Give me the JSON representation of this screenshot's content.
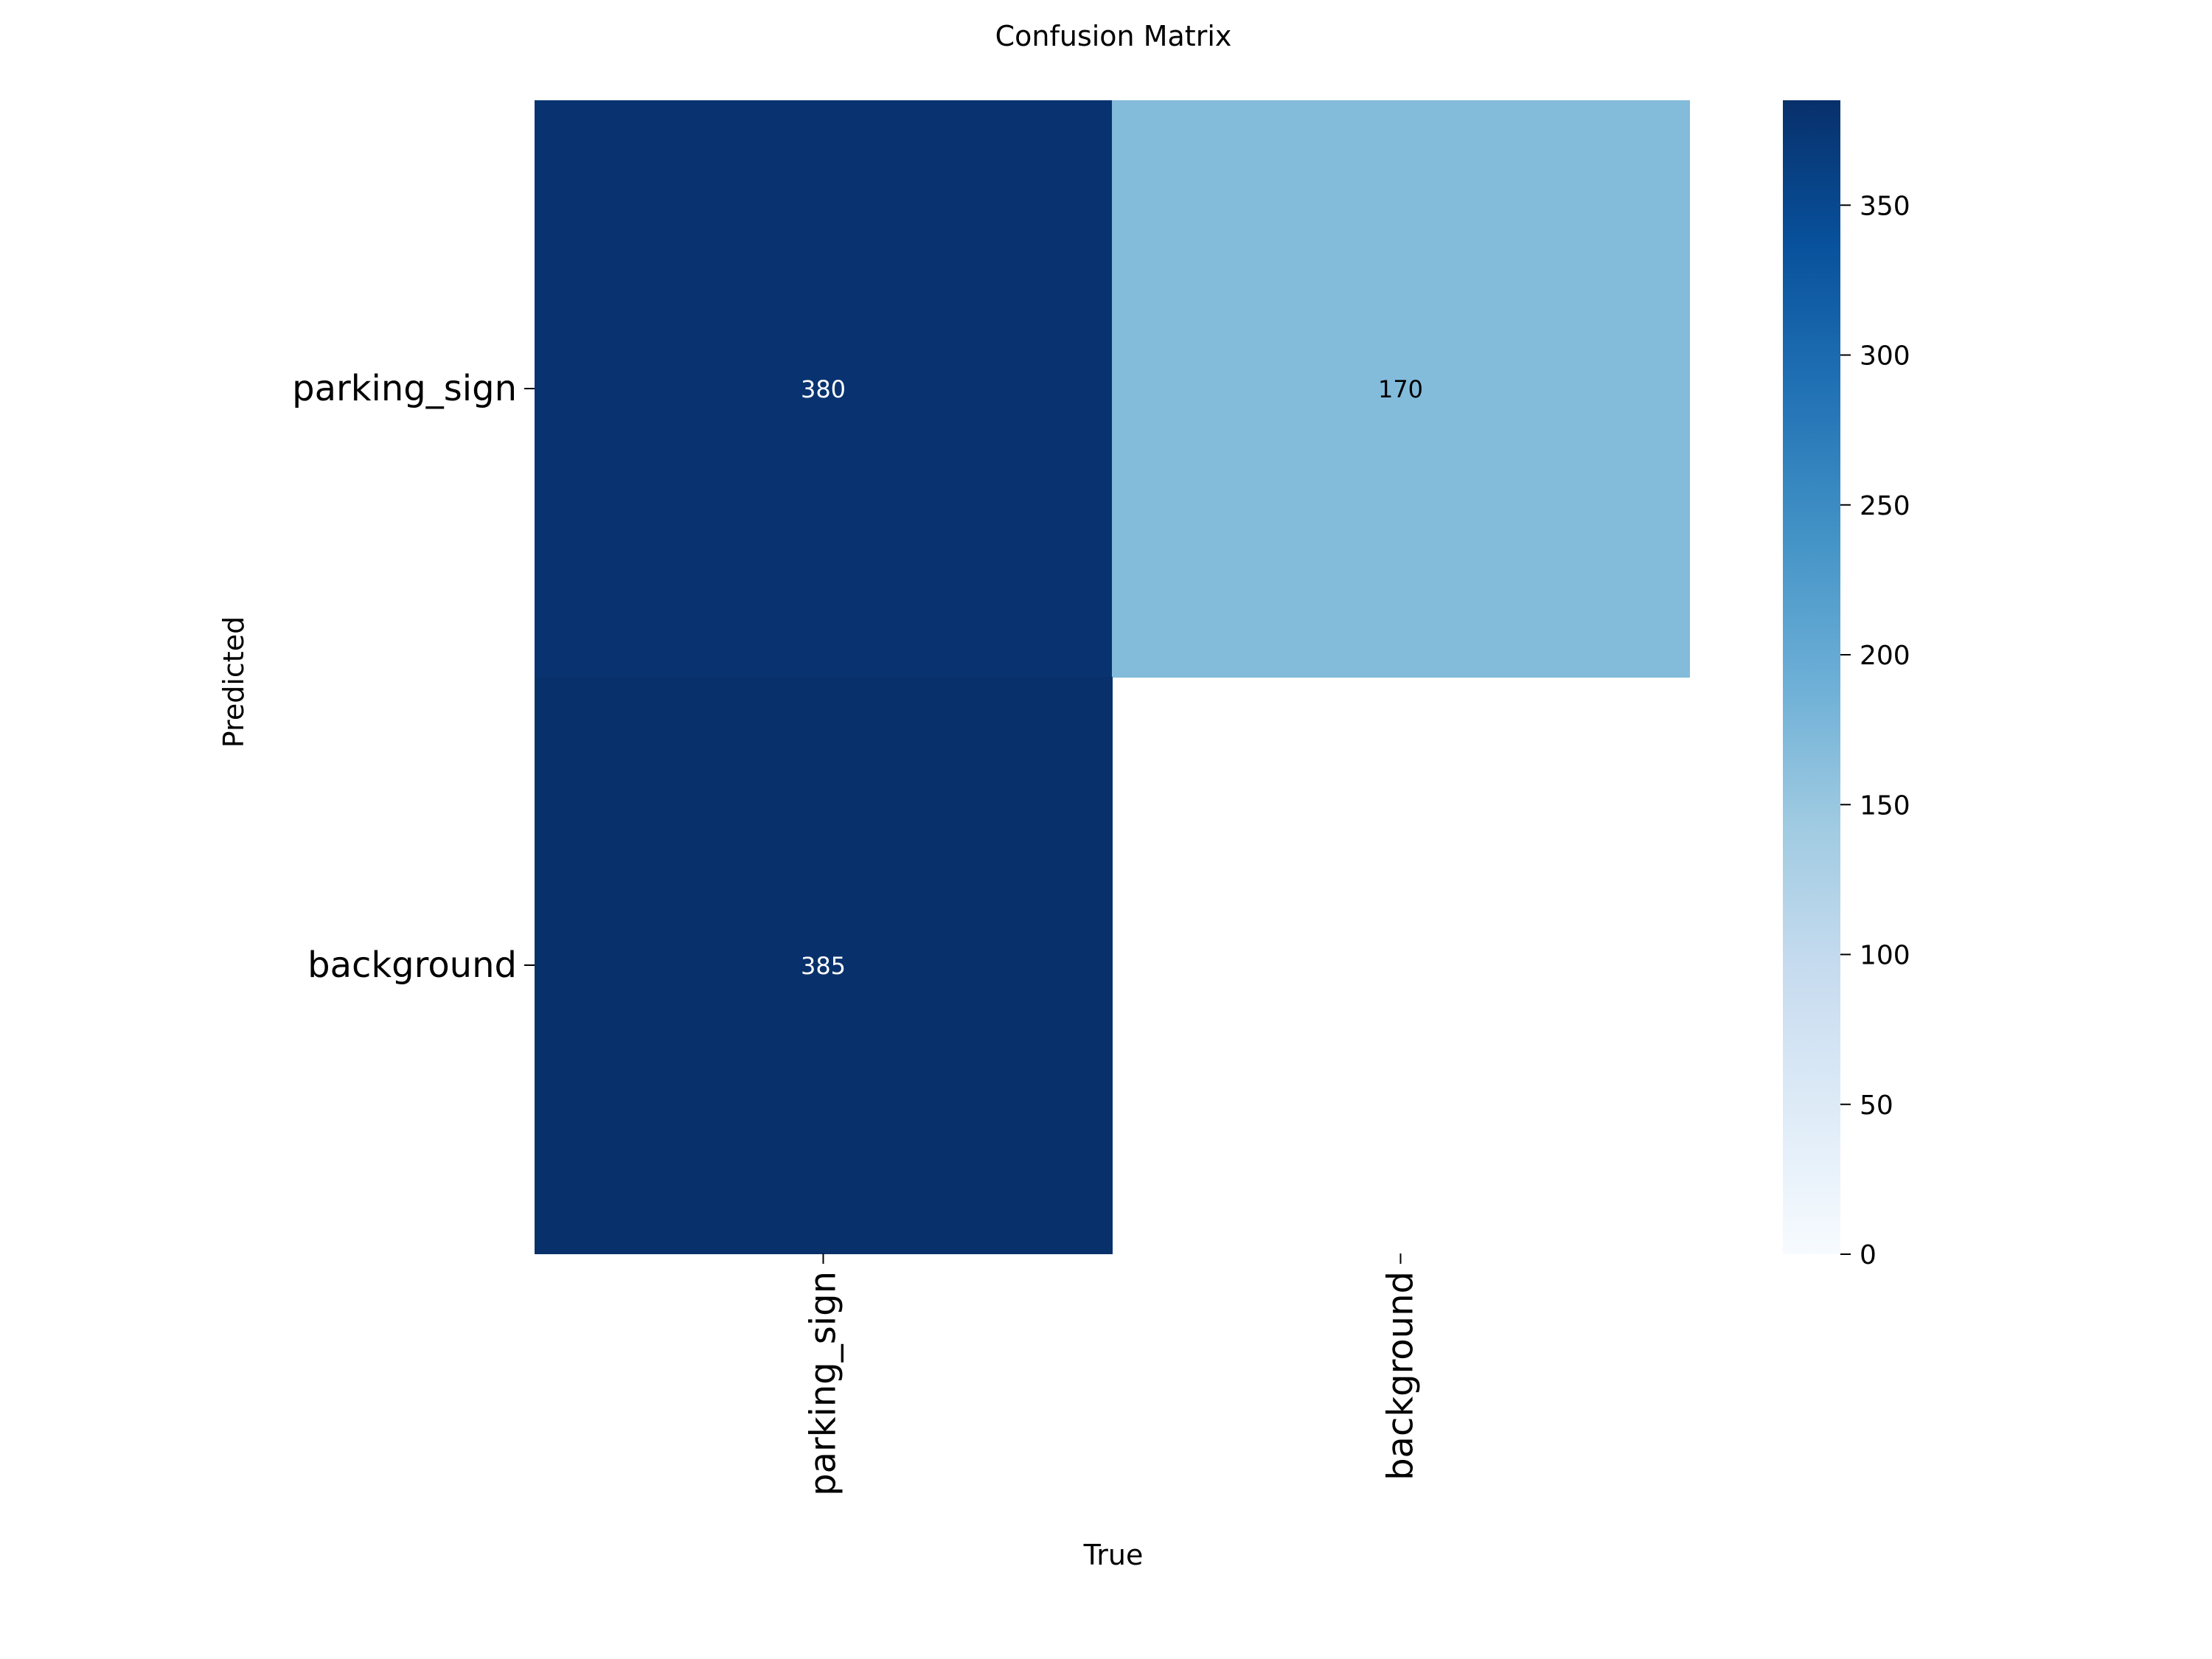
{
  "chart_data": {
    "type": "heatmap",
    "title": "Confusion Matrix",
    "xlabel": "True",
    "ylabel": "Predicted",
    "x_categories": [
      "parking_sign",
      "background"
    ],
    "y_categories": [
      "parking_sign",
      "background"
    ],
    "values": [
      [
        380,
        170
      ],
      [
        385,
        null
      ]
    ],
    "cell_labels": [
      [
        "380",
        "170"
      ],
      [
        "385",
        ""
      ]
    ],
    "colorbar": {
      "min": 0,
      "max": 385,
      "ticks": [
        0,
        50,
        100,
        150,
        200,
        250,
        300,
        350
      ],
      "tick_labels": [
        "0",
        "50",
        "100",
        "150",
        "200",
        "250",
        "300",
        "350"
      ],
      "colormap": "Blues"
    },
    "grid": false,
    "colors": {
      "low": "#f7fbff",
      "high": "#08306b",
      "background": "#ffffff"
    }
  }
}
